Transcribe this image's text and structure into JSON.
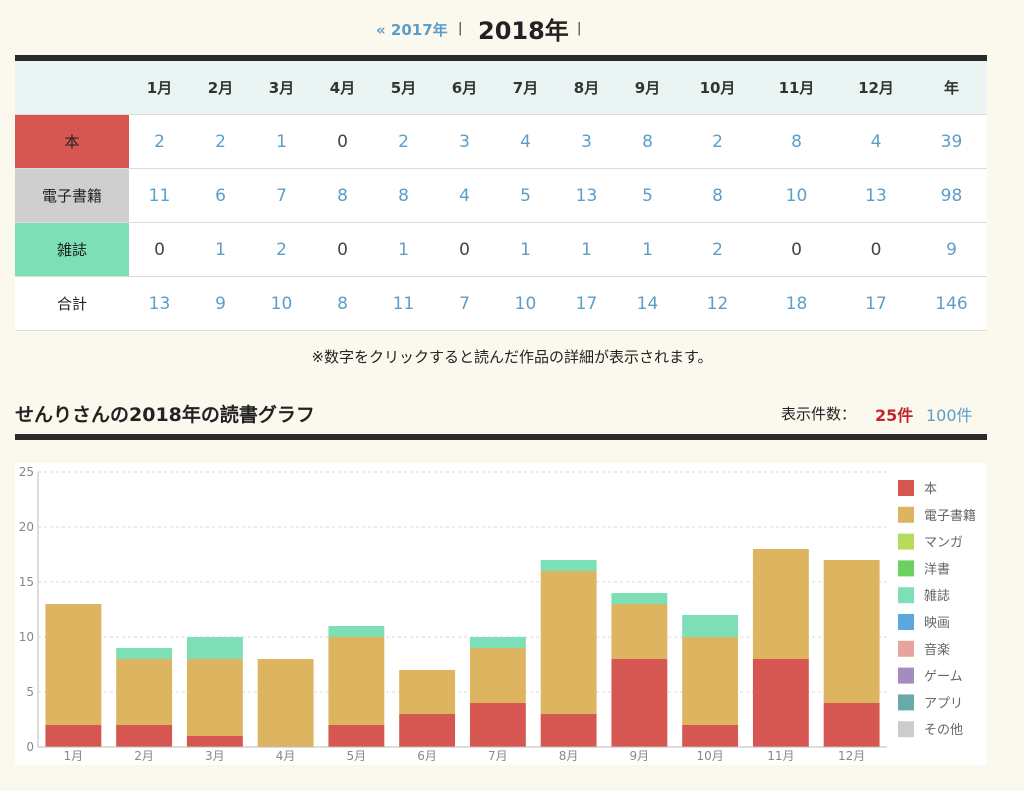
{
  "nav": {
    "prev_year": "« 2017年",
    "separator": "|",
    "current_year": "2018年"
  },
  "table": {
    "columns": [
      "1月",
      "2月",
      "3月",
      "4月",
      "5月",
      "6月",
      "7月",
      "8月",
      "9月",
      "10月",
      "11月",
      "12月",
      "年"
    ],
    "rows": [
      {
        "label": "本",
        "color": "#d65752",
        "values": [
          2,
          2,
          1,
          0,
          2,
          3,
          4,
          3,
          8,
          2,
          8,
          4,
          39
        ]
      },
      {
        "label": "電子書籍",
        "color": "#cfcfcf",
        "values": [
          11,
          6,
          7,
          8,
          8,
          4,
          5,
          13,
          5,
          8,
          10,
          13,
          98
        ]
      },
      {
        "label": "雑誌",
        "color": "#7ddfb5",
        "values": [
          0,
          1,
          2,
          0,
          1,
          0,
          1,
          1,
          1,
          2,
          0,
          0,
          9
        ]
      },
      {
        "label": "合計",
        "color": "#ffffff",
        "values": [
          13,
          9,
          10,
          8,
          11,
          7,
          10,
          17,
          14,
          12,
          18,
          17,
          146
        ]
      }
    ]
  },
  "note": "※数字をクリックすると読んだ作品の詳細が表示されます。",
  "graph": {
    "title": "せんりさんの2018年の読書グラフ",
    "count_label": "表示件数：",
    "count_option_active": "25件",
    "count_option_other": "100件"
  },
  "chart_data": {
    "type": "bar",
    "stacked": true,
    "categories": [
      "1月",
      "2月",
      "3月",
      "4月",
      "5月",
      "6月",
      "7月",
      "8月",
      "9月",
      "10月",
      "11月",
      "12月"
    ],
    "ylim": [
      0,
      25
    ],
    "yticks": [
      0,
      5,
      10,
      15,
      20,
      25
    ],
    "grid": true,
    "legend_position": "right",
    "series": [
      {
        "name": "本",
        "color": "#d65752",
        "values": [
          2,
          2,
          1,
          0,
          2,
          3,
          4,
          3,
          8,
          2,
          8,
          4
        ]
      },
      {
        "name": "電子書籍",
        "color": "#ddb45f",
        "values": [
          11,
          6,
          7,
          8,
          8,
          4,
          5,
          13,
          5,
          8,
          10,
          13
        ]
      },
      {
        "name": "マンガ",
        "color": "#b5dc5b",
        "values": [
          0,
          0,
          0,
          0,
          0,
          0,
          0,
          0,
          0,
          0,
          0,
          0
        ]
      },
      {
        "name": "洋書",
        "color": "#6bd05e",
        "values": [
          0,
          0,
          0,
          0,
          0,
          0,
          0,
          0,
          0,
          0,
          0,
          0
        ]
      },
      {
        "name": "雑誌",
        "color": "#7ddfb5",
        "values": [
          0,
          1,
          2,
          0,
          1,
          0,
          1,
          1,
          1,
          2,
          0,
          0
        ]
      },
      {
        "name": "映画",
        "color": "#5ba8de",
        "values": [
          0,
          0,
          0,
          0,
          0,
          0,
          0,
          0,
          0,
          0,
          0,
          0
        ]
      },
      {
        "name": "音楽",
        "color": "#e5a49d",
        "values": [
          0,
          0,
          0,
          0,
          0,
          0,
          0,
          0,
          0,
          0,
          0,
          0
        ]
      },
      {
        "name": "ゲーム",
        "color": "#a58cc0",
        "values": [
          0,
          0,
          0,
          0,
          0,
          0,
          0,
          0,
          0,
          0,
          0,
          0
        ]
      },
      {
        "name": "アプリ",
        "color": "#6aa9aa",
        "values": [
          0,
          0,
          0,
          0,
          0,
          0,
          0,
          0,
          0,
          0,
          0,
          0
        ]
      },
      {
        "name": "その他",
        "color": "#cccccc",
        "values": [
          0,
          0,
          0,
          0,
          0,
          0,
          0,
          0,
          0,
          0,
          0,
          0
        ]
      }
    ]
  }
}
